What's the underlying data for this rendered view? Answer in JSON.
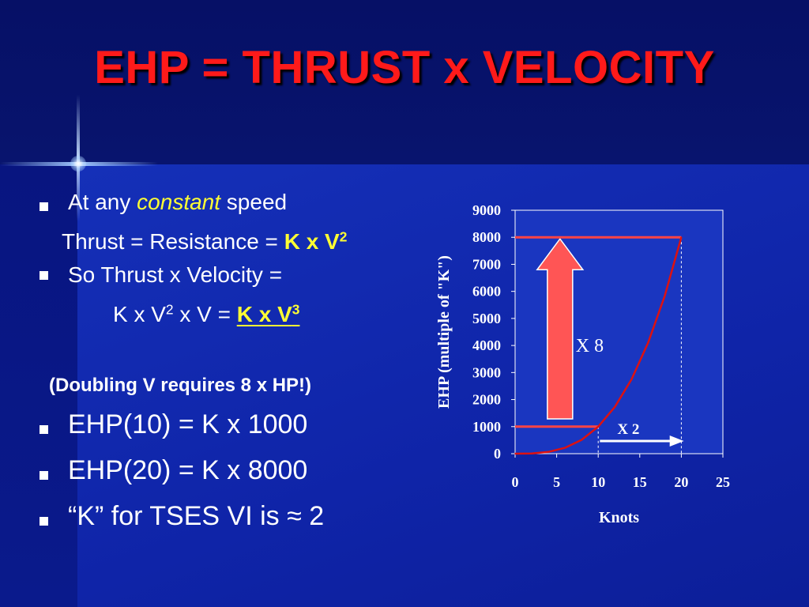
{
  "slide": {
    "title": "EHP = THRUST x VELOCITY",
    "bullets": {
      "b1_prefix": "At any ",
      "b1_emphasis": "constant",
      "b1_suffix": " speed",
      "line_thrust_prefix": "Thrust = Resistance = ",
      "line_thrust_formula": "K x V",
      "line_thrust_exp": "2",
      "b2_text": "So Thrust x Velocity =",
      "line_k_a": "K x V",
      "line_k_exp1": "2",
      "line_k_b": " x V = ",
      "line_k_formula": "K x V",
      "line_k_exp2": "3",
      "doubling_note": "(Doubling V requires 8 x HP!)",
      "b3_text": "EHP(10) = K x 1000",
      "b4_text": "EHP(20) = K x 8000",
      "b5_text": "“K” for TSES VI is ≈ 2"
    }
  },
  "colors": {
    "title": "#ff1a1a",
    "highlight": "#ffff33",
    "curve": "#dd1111",
    "ref_lines": "#ff4444",
    "big_arrow": "#ff5555",
    "plot_bg": "#1a36c0"
  },
  "chart_data": {
    "type": "line",
    "xlabel": "Knots",
    "ylabel": "EHP (multiple of \"K\")",
    "xlim": [
      0,
      25
    ],
    "ylim": [
      0,
      9000
    ],
    "x_ticks": [
      "0",
      "5",
      "10",
      "15",
      "20",
      "25"
    ],
    "y_ticks": [
      "0",
      "1000",
      "2000",
      "3000",
      "4000",
      "5000",
      "6000",
      "7000",
      "8000",
      "9000"
    ],
    "series": [
      {
        "x": [
          0,
          2,
          4,
          6,
          8,
          10,
          12,
          14,
          16,
          18,
          20
        ],
        "values": [
          0,
          8,
          64,
          216,
          512,
          1000,
          1728,
          2744,
          4096,
          5832,
          8000
        ]
      }
    ],
    "reference_lines": [
      {
        "y": 1000,
        "x_start": 0,
        "x_end": 10
      },
      {
        "y": 8000,
        "x_start": 0,
        "x_end": 20
      }
    ],
    "dashed_verticals": [
      10,
      20
    ],
    "annotations": {
      "x8_label": "X 8",
      "x2_label": "X 2"
    },
    "grid": false
  }
}
